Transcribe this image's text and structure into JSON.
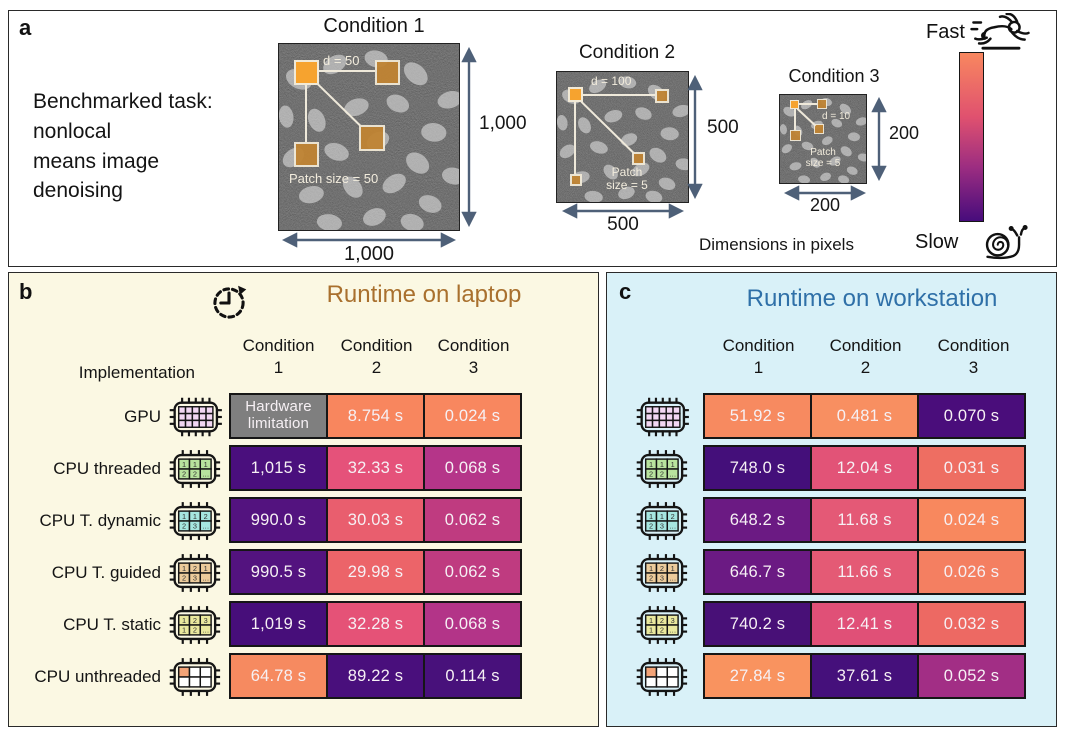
{
  "chart_data": [
    {
      "type": "heatmap",
      "title": "Runtime on laptop",
      "rows": [
        "GPU",
        "CPU threaded",
        "CPU T. dynamic",
        "CPU T. guided",
        "CPU T. static",
        "CPU unthreaded"
      ],
      "columns": [
        "Condition 1",
        "Condition 2",
        "Condition 3"
      ],
      "values_seconds": [
        [
          null,
          8.754,
          0.024
        ],
        [
          1015,
          32.33,
          0.068
        ],
        [
          990.0,
          30.03,
          0.062
        ],
        [
          990.5,
          29.98,
          0.062
        ],
        [
          1019,
          32.28,
          0.068
        ],
        [
          64.78,
          89.22,
          0.114
        ]
      ],
      "null_meaning": "Hardware limitation",
      "color_scale": "orange = fast, dark purple = slow, normalized per column"
    },
    {
      "type": "heatmap",
      "title": "Runtime on workstation",
      "rows": [
        "GPU",
        "CPU threaded",
        "CPU T. dynamic",
        "CPU T. guided",
        "CPU T. static",
        "CPU unthreaded"
      ],
      "columns": [
        "Condition 1",
        "Condition 2",
        "Condition 3"
      ],
      "values_seconds": [
        [
          51.92,
          0.481,
          0.07
        ],
        [
          748.0,
          12.04,
          0.031
        ],
        [
          648.2,
          11.68,
          0.024
        ],
        [
          646.7,
          11.66,
          0.026
        ],
        [
          740.2,
          12.41,
          0.032
        ],
        [
          27.84,
          37.61,
          0.052
        ]
      ],
      "color_scale": "orange = fast, dark purple = slow, normalized per column"
    }
  ],
  "panel_a": {
    "label": "a",
    "task_lines": [
      "Benchmarked task:",
      "nonlocal",
      "means image",
      "denoising"
    ],
    "dimensions_note": "Dimensions in pixels",
    "arrow_color": "#4e6078",
    "conditions": [
      {
        "title": "Condition 1",
        "d_label": "d = 50",
        "patch_lines": [
          "Patch size = 50"
        ],
        "width_label": "1,000",
        "height_label": "1,000"
      },
      {
        "title": "Condition 2",
        "d_label": "d = 100",
        "patch_lines": [
          "Patch",
          "size = 5"
        ],
        "width_label": "500",
        "height_label": "500"
      },
      {
        "title": "Condition 3",
        "d_label": "d = 10",
        "patch_lines": [
          "Patch",
          "size = 5"
        ],
        "width_label": "200",
        "height_label": "200"
      }
    ],
    "legend": {
      "fast_label": "Fast",
      "slow_label": "Slow",
      "gradient": [
        "#f8875f",
        "#e0516f",
        "#9c2d81",
        "#470c7c"
      ]
    }
  },
  "panel_b": {
    "label": "b",
    "title": "Runtime on laptop",
    "title_color": "#a9702e",
    "bg": "#fbf8e3",
    "implementation_label": "Implementation",
    "headers": [
      {
        "word": "Condition",
        "num": "1"
      },
      {
        "word": "Condition",
        "num": "2"
      },
      {
        "word": "Condition",
        "num": "3"
      }
    ],
    "rows": [
      {
        "label": "GPU",
        "icon": "gpu-chip-icon",
        "cells": [
          {
            "text": "Hardware limitation",
            "bg": "#7f7f7f"
          },
          {
            "text": "8.754 s",
            "bg": "#f8865e"
          },
          {
            "text": "0.024 s",
            "bg": "#f8875f"
          }
        ]
      },
      {
        "label": "CPU threaded",
        "icon": "cpu-threaded-chip-icon",
        "cells": [
          {
            "text": "1,015 s",
            "bg": "#4a0f7d"
          },
          {
            "text": "32.33 s",
            "bg": "#e5527a"
          },
          {
            "text": "0.068 s",
            "bg": "#b53589"
          }
        ]
      },
      {
        "label": "CPU T. dynamic",
        "icon": "cpu-dynamic-chip-icon",
        "cells": [
          {
            "text": "990.0 s",
            "bg": "#53137f"
          },
          {
            "text": "30.03 s",
            "bg": "#e95e6e"
          },
          {
            "text": "0.062 s",
            "bg": "#bf3b80"
          }
        ]
      },
      {
        "label": "CPU T. guided",
        "icon": "cpu-guided-chip-icon",
        "cells": [
          {
            "text": "990.5 s",
            "bg": "#53137f"
          },
          {
            "text": "29.98 s",
            "bg": "#ec6469"
          },
          {
            "text": "0.062 s",
            "bg": "#bf3b80"
          }
        ]
      },
      {
        "label": "CPU T. static",
        "icon": "cpu-static-chip-icon",
        "cells": [
          {
            "text": "1,019 s",
            "bg": "#470e7a"
          },
          {
            "text": "32.28 s",
            "bg": "#e55277"
          },
          {
            "text": "0.068 s",
            "bg": "#b33488"
          }
        ]
      },
      {
        "label": "CPU unthreaded",
        "icon": "cpu-unthreaded-chip-icon",
        "cells": [
          {
            "text": "64.78 s",
            "bg": "#f68a60"
          },
          {
            "text": "89.22 s",
            "bg": "#490f7c"
          },
          {
            "text": "0.114 s",
            "bg": "#48117b"
          }
        ]
      }
    ]
  },
  "panel_c": {
    "label": "c",
    "title": "Runtime on workstation",
    "title_color": "#2f70a8",
    "bg": "#d9f1f8",
    "headers": [
      {
        "word": "Condition",
        "num": "1"
      },
      {
        "word": "Condition",
        "num": "2"
      },
      {
        "word": "Condition",
        "num": "3"
      }
    ],
    "rows": [
      {
        "icon": "gpu-chip-icon",
        "cells": [
          {
            "text": "51.92 s",
            "bg": "#f78a60"
          },
          {
            "text": "0.481 s",
            "bg": "#f88f61"
          },
          {
            "text": "0.070 s",
            "bg": "#4a0d7b"
          }
        ]
      },
      {
        "icon": "cpu-threaded-chip-icon",
        "cells": [
          {
            "text": "748.0 s",
            "bg": "#440f7a"
          },
          {
            "text": "12.04 s",
            "bg": "#e25377"
          },
          {
            "text": "0.031 s",
            "bg": "#ee6e62"
          }
        ]
      },
      {
        "icon": "cpu-dynamic-chip-icon",
        "cells": [
          {
            "text": "648.2 s",
            "bg": "#6b1a83"
          },
          {
            "text": "11.68 s",
            "bg": "#e45976"
          },
          {
            "text": "0.024 s",
            "bg": "#f8885e"
          }
        ]
      },
      {
        "icon": "cpu-guided-chip-icon",
        "cells": [
          {
            "text": "646.7 s",
            "bg": "#6b1a83"
          },
          {
            "text": "11.66 s",
            "bg": "#e45a75"
          },
          {
            "text": "0.026 s",
            "bg": "#f47f61"
          }
        ]
      },
      {
        "icon": "cpu-static-chip-icon",
        "cells": [
          {
            "text": "740.2 s",
            "bg": "#481077"
          },
          {
            "text": "12.41 s",
            "bg": "#e05077"
          },
          {
            "text": "0.032 s",
            "bg": "#ed6963"
          }
        ]
      },
      {
        "icon": "cpu-unthreaded-chip-icon",
        "cells": [
          {
            "text": "27.84 s",
            "bg": "#f9935f"
          },
          {
            "text": "37.61 s",
            "bg": "#45107b"
          },
          {
            "text": "0.052 s",
            "bg": "#a22e85"
          }
        ]
      }
    ]
  },
  "chips": {
    "gpu": {
      "cols": 5,
      "rows": 3,
      "color": "#f2d7f3",
      "labels": []
    },
    "threaded": {
      "cols": 3,
      "rows": 2,
      "color": "#b8e39e",
      "labels": [
        "1",
        "1",
        "1",
        "2",
        "2",
        "…"
      ]
    },
    "dynamic": {
      "cols": 3,
      "rows": 2,
      "color": "#a6e6e0",
      "labels": [
        "1",
        "1",
        "2",
        "2",
        "3",
        "…"
      ]
    },
    "guided": {
      "cols": 3,
      "rows": 2,
      "color": "#eccb9b",
      "labels": [
        "1",
        "2",
        "1",
        "2",
        "3",
        "…"
      ]
    },
    "static": {
      "cols": 3,
      "rows": 2,
      "color": "#eae89e",
      "labels": [
        "1",
        "2",
        "3",
        "1",
        "2",
        "…"
      ]
    },
    "unthreaded": {
      "cols": 3,
      "rows": 2,
      "color": "#ffffff",
      "labels": [],
      "highlight": "#f3a377"
    }
  }
}
